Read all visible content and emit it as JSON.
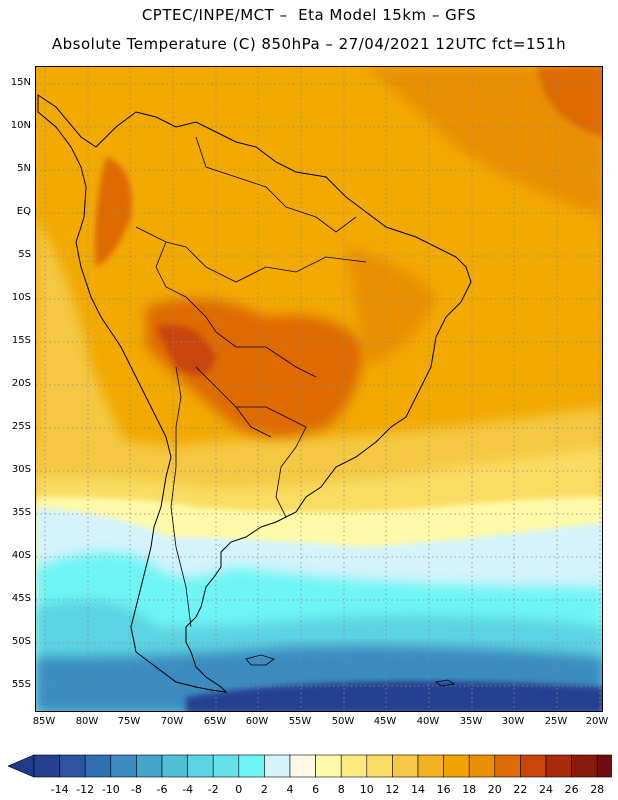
{
  "header": {
    "title_line1": "CPTEC/INPE/MCT –  Eta Model 15km – GFS",
    "title_line2": "Absolute Temperature (C) 850hPa – 27/04/2021 12UTC fct=151h"
  },
  "map": {
    "lat_labels": [
      "15N",
      "10N",
      "5N",
      "EQ",
      "5S",
      "10S",
      "15S",
      "20S",
      "25S",
      "30S",
      "35S",
      "40S",
      "45S",
      "50S",
      "55S"
    ],
    "lon_labels": [
      "85W",
      "80W",
      "75W",
      "70W",
      "65W",
      "60W",
      "55W",
      "50W",
      "45W",
      "40W",
      "35W",
      "30W",
      "25W",
      "20W"
    ],
    "extent": {
      "lon_min": -86,
      "lon_max": -19.5,
      "lat_min": -58,
      "lat_max": 17
    }
  },
  "colorbar": {
    "levels": [
      "-14",
      "-12",
      "-10",
      "-8",
      "-6",
      "-4",
      "-2",
      "0",
      "2",
      "4",
      "6",
      "8",
      "10",
      "12",
      "14",
      "16",
      "18",
      "20",
      "22",
      "24",
      "26",
      "28"
    ],
    "colors": {
      "under": "#1e3a8a",
      "bins": [
        "#263f91",
        "#2b54a0",
        "#3170b0",
        "#3a8bc0",
        "#45a6cc",
        "#4fbfd8",
        "#5bd3e2",
        "#66e2ea",
        "#6ef5f5",
        "#d4f3fb",
        "#fff8e6",
        "#fffaa8",
        "#ffea80",
        "#fadc62",
        "#f4c842",
        "#f2b21f",
        "#f2a200",
        "#e98f05",
        "#de6a05",
        "#c9440a",
        "#a72a0a",
        "#8a1a0a",
        "#6e0e0e"
      ],
      "over": "#7a0c1e"
    }
  }
}
